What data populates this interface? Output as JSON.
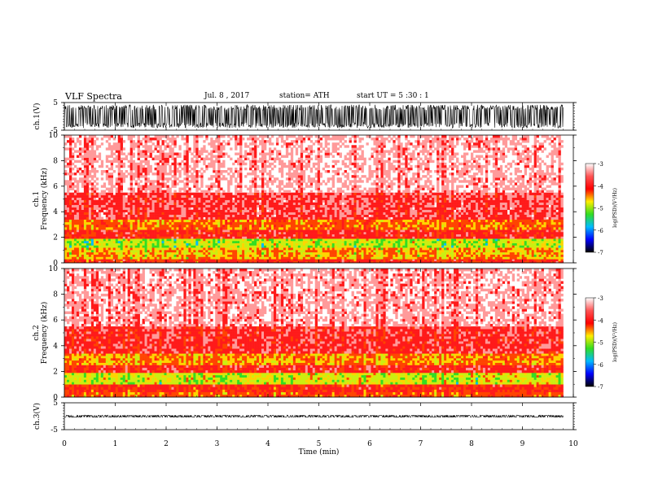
{
  "header": {
    "title": "VLF  Spectra",
    "date": "Jul.  8  , 2017",
    "station": "station= ATH",
    "start_ut": "start  UT  =    5  :30 : 1"
  },
  "colorbar": {
    "label": "log(PSD)(V²/Hz)",
    "ticks": [
      "-3",
      "-4",
      "-5",
      "-6",
      "-7"
    ],
    "stops": [
      "#ffffff",
      "#ff5555",
      "#ff0000",
      "#ffee00",
      "#33dd22",
      "#00bbff",
      "#0000ff",
      "#000000"
    ]
  },
  "chart_data": [
    {
      "type": "line",
      "panel": "ch.1 waveform",
      "ylabel": "ch.1(V)",
      "ylim": [
        -5,
        5
      ],
      "yticks": [
        "5",
        "-5"
      ],
      "x": [
        0,
        9.8
      ],
      "envelope_min": -4.2,
      "envelope_max": 4.2,
      "color": "#000000"
    },
    {
      "type": "heatmap",
      "panel": "ch.1 spectrogram",
      "ylabel": "ch.1\nFrequency  (kHz)",
      "ylim": [
        0,
        10
      ],
      "xlim": [
        0,
        9.8
      ],
      "yticks": [
        "0",
        "2",
        "4",
        "6",
        "8",
        "10"
      ],
      "bands": [
        {
          "from": 0,
          "to": 0.3,
          "level": -3.8
        },
        {
          "from": 0.3,
          "to": 1.2,
          "level": -4.4
        },
        {
          "from": 1.2,
          "to": 1.9,
          "level": -4.8
        },
        {
          "from": 1.9,
          "to": 2.6,
          "level": -3.7
        },
        {
          "from": 2.6,
          "to": 3.4,
          "level": -4.2
        },
        {
          "from": 3.4,
          "to": 5.5,
          "level": -3.5
        },
        {
          "from": 5.5,
          "to": 10,
          "level": -3.1
        }
      ]
    },
    {
      "type": "heatmap",
      "panel": "ch.2 spectrogram",
      "ylabel": "ch.2\nFrequency  (kHz)",
      "ylim": [
        0,
        10
      ],
      "xlim": [
        0,
        9.8
      ],
      "yticks": [
        "0",
        "2",
        "4",
        "6",
        "8",
        "10"
      ],
      "bands": [
        {
          "from": 0,
          "to": 0.4,
          "level": -4.1
        },
        {
          "from": 0.4,
          "to": 1.0,
          "level": -3.8
        },
        {
          "from": 1.0,
          "to": 1.9,
          "level": -4.7
        },
        {
          "from": 1.9,
          "to": 2.5,
          "level": -3.7
        },
        {
          "from": 2.5,
          "to": 3.4,
          "level": -4.3
        },
        {
          "from": 3.4,
          "to": 5.5,
          "level": -3.6
        },
        {
          "from": 5.5,
          "to": 10,
          "level": -3.15
        }
      ]
    },
    {
      "type": "line",
      "panel": "ch.3 waveform",
      "ylabel": "ch.3(V)",
      "ylim": [
        -5,
        5
      ],
      "yticks": [
        "5",
        "-5"
      ],
      "x": [
        0,
        9.8
      ],
      "envelope_min": -0.4,
      "envelope_max": 0.4,
      "color": "#000000"
    }
  ],
  "xaxis": {
    "label": "Time  (min)",
    "range": [
      0,
      10
    ],
    "ticks": [
      "0",
      "1",
      "2",
      "3",
      "4",
      "5",
      "6",
      "7",
      "8",
      "9",
      "10"
    ]
  }
}
